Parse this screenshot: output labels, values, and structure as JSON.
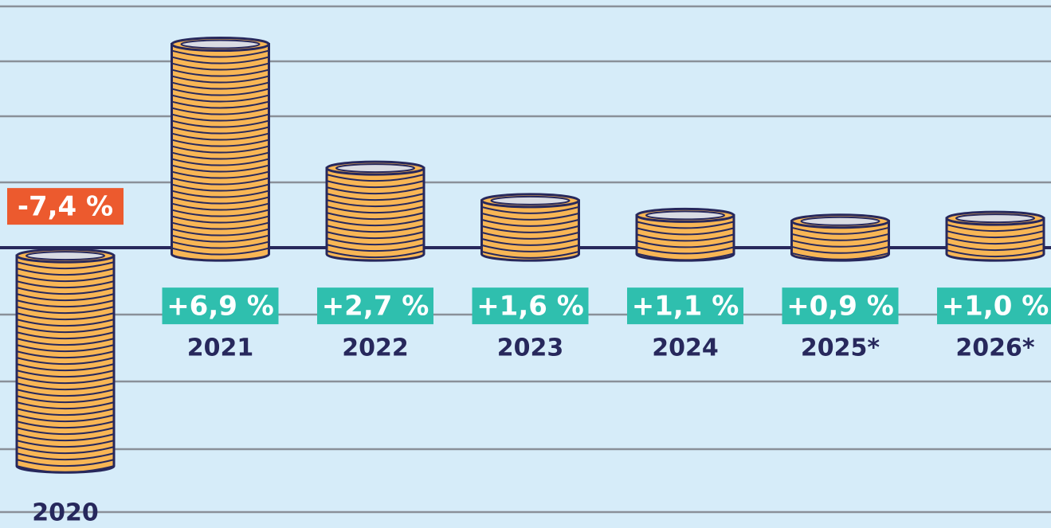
{
  "chart_data": {
    "type": "bar",
    "categories": [
      "2020",
      "2021",
      "2022",
      "2023",
      "2024",
      "2025*",
      "2026*"
    ],
    "values": [
      -7.4,
      6.9,
      2.7,
      1.6,
      1.1,
      0.9,
      1.0
    ],
    "value_labels": [
      "-7,4 %",
      "+6,9 %",
      "+2,7 %",
      "+1,6 %",
      "+1,1 %",
      "+0,9 %",
      "+1,0 %"
    ],
    "ylim": [
      -9.5,
      8.4
    ],
    "color": "#f8b655",
    "positive_label_color": "#2fbfae",
    "negative_label_color": "#ec5a2e"
  }
}
